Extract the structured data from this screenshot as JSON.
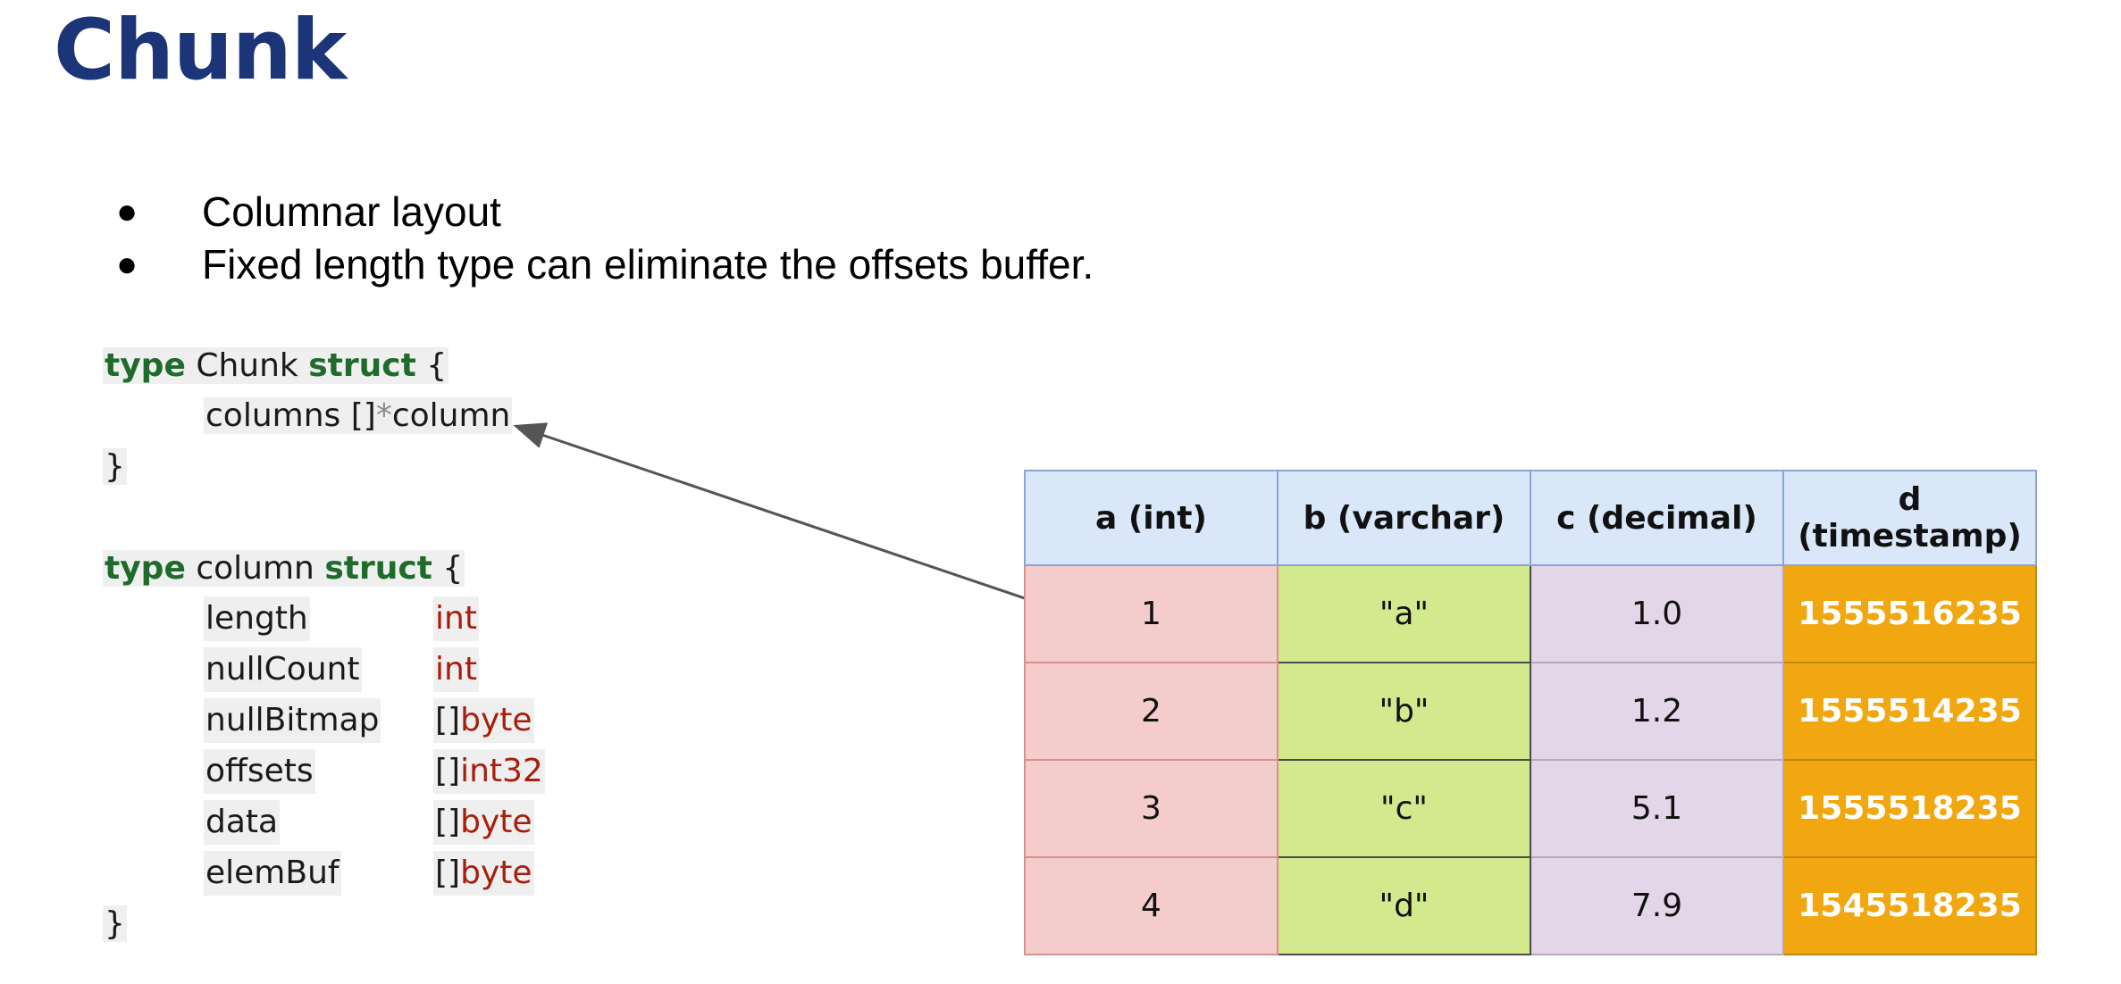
{
  "title": "Chunk",
  "bullets": [
    "Columnar layout",
    "Fixed length type can eliminate the offsets buffer."
  ],
  "code": {
    "kw_type": "type",
    "kw_struct": "struct",
    "open_brace": "{",
    "close_brace": "}",
    "chunk_name": "Chunk",
    "chunk_field_name": "columns",
    "chunk_field_prefix": "[]",
    "chunk_field_ptr": "*",
    "chunk_field_type": "column",
    "column_name": "column",
    "fields": [
      {
        "name": "length",
        "prefix": "",
        "type": "int"
      },
      {
        "name": "nullCount",
        "prefix": "",
        "type": "int"
      },
      {
        "name": "nullBitmap",
        "prefix": "[]",
        "type": "byte"
      },
      {
        "name": "offsets",
        "prefix": "[]",
        "type": "int32"
      },
      {
        "name": "data",
        "prefix": "[]",
        "type": "byte"
      },
      {
        "name": "elemBuf",
        "prefix": "[]",
        "type": "byte"
      }
    ]
  },
  "table": {
    "headers": [
      "a (int)",
      "b (varchar)",
      "c (decimal)",
      "d (timestamp)"
    ],
    "rows": [
      [
        "1",
        "\"a\"",
        "1.0",
        "1555516235"
      ],
      [
        "2",
        "\"b\"",
        "1.2",
        "1555514235"
      ],
      [
        "3",
        "\"c\"",
        "5.1",
        "1555518235"
      ],
      [
        "4",
        "\"d\"",
        "7.9",
        "1545518235"
      ]
    ]
  },
  "colors": {
    "title": "#1c3478",
    "keyword": "#1e6b2b",
    "type": "#a81e0c",
    "col_a": "#f4cccc",
    "col_b": "#d2ea8d",
    "col_c": "#e3d6e8",
    "col_d": "#f1a70f",
    "header": "#d9e7f8"
  }
}
